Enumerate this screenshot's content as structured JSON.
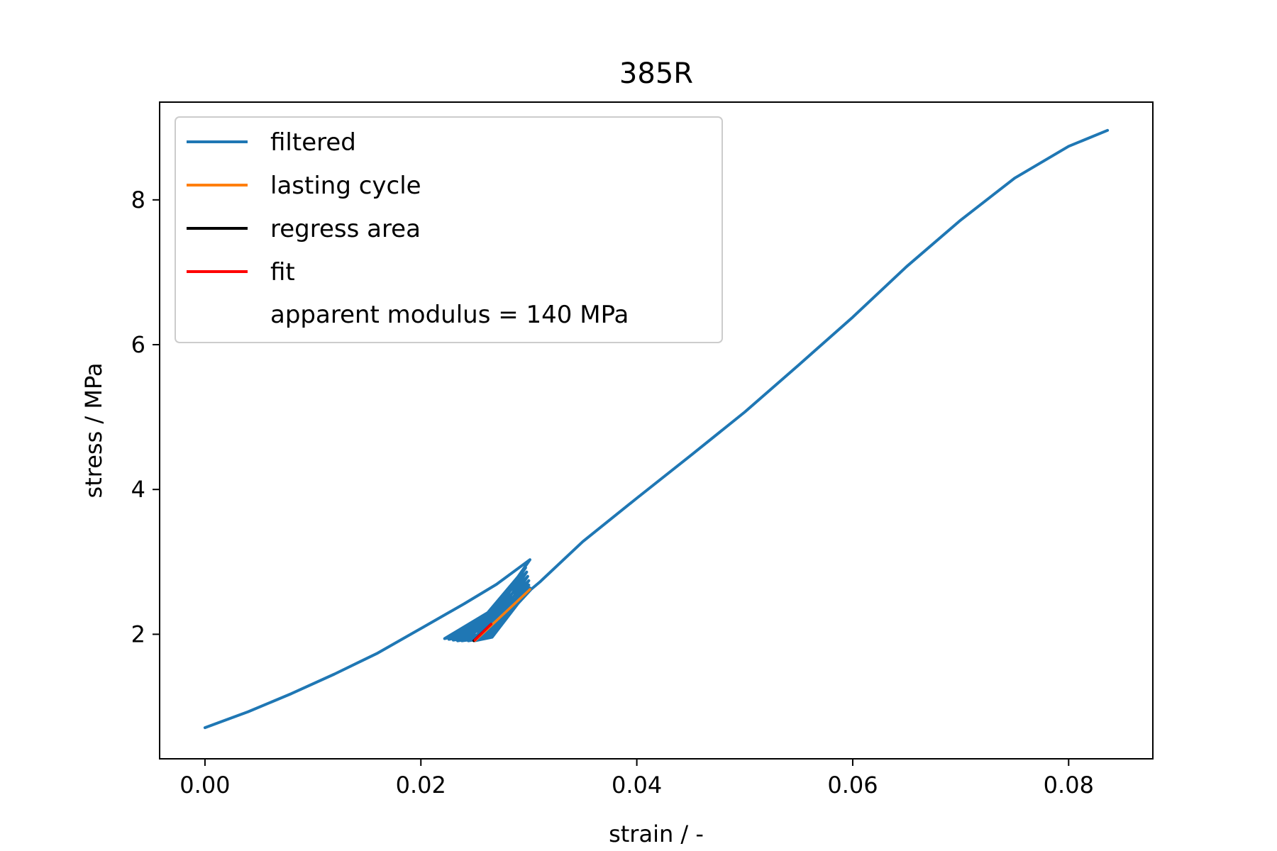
{
  "chart_data": {
    "type": "line",
    "title": "385R",
    "xlabel": "strain / -",
    "ylabel": "stress / MPa",
    "xlim": [
      -0.0042,
      0.0878
    ],
    "ylim": [
      0.28,
      9.35
    ],
    "x_ticks": [
      0.0,
      0.02,
      0.04,
      0.06,
      0.08
    ],
    "x_tick_labels": [
      "0.00",
      "0.02",
      "0.04",
      "0.06",
      "0.08"
    ],
    "y_ticks": [
      2,
      4,
      6,
      8
    ],
    "y_tick_labels": [
      "2",
      "4",
      "6",
      "8"
    ],
    "grid": false,
    "legend_position": "upper-left",
    "legend_note": "apparent modulus = 140 MPa",
    "series": [
      {
        "name": "filtered",
        "color": "#1f77b4",
        "points": [
          [
            0.0,
            0.71
          ],
          [
            0.004,
            0.93
          ],
          [
            0.008,
            1.18
          ],
          [
            0.012,
            1.45
          ],
          [
            0.016,
            1.74
          ],
          [
            0.02,
            2.08
          ],
          [
            0.024,
            2.42
          ],
          [
            0.027,
            2.69
          ],
          [
            0.0301,
            3.03
          ],
          [
            0.0255,
            2.05
          ],
          [
            0.0222,
            1.94
          ],
          [
            0.0262,
            2.3
          ],
          [
            0.0297,
            2.92
          ],
          [
            0.0256,
            2.0
          ],
          [
            0.0226,
            1.93
          ],
          [
            0.0264,
            2.28
          ],
          [
            0.0298,
            2.86
          ],
          [
            0.0258,
            1.98
          ],
          [
            0.023,
            1.92
          ],
          [
            0.0266,
            2.26
          ],
          [
            0.0299,
            2.8
          ],
          [
            0.026,
            1.97
          ],
          [
            0.0234,
            1.91
          ],
          [
            0.0268,
            2.24
          ],
          [
            0.03,
            2.74
          ],
          [
            0.0262,
            1.96
          ],
          [
            0.0238,
            1.91
          ],
          [
            0.027,
            2.22
          ],
          [
            0.03,
            2.68
          ],
          [
            0.0264,
            1.96
          ],
          [
            0.0244,
            1.91
          ],
          [
            0.0272,
            2.2
          ],
          [
            0.0301,
            2.64
          ],
          [
            0.0266,
            1.96
          ],
          [
            0.025,
            1.91
          ],
          [
            0.0276,
            2.2
          ],
          [
            0.0302,
            2.62
          ],
          [
            0.031,
            2.72
          ],
          [
            0.035,
            3.28
          ],
          [
            0.04,
            3.88
          ],
          [
            0.045,
            4.47
          ],
          [
            0.05,
            5.07
          ],
          [
            0.055,
            5.72
          ],
          [
            0.06,
            6.38
          ],
          [
            0.065,
            7.08
          ],
          [
            0.07,
            7.72
          ],
          [
            0.075,
            8.3
          ],
          [
            0.08,
            8.74
          ],
          [
            0.0836,
            8.96
          ]
        ]
      },
      {
        "name": "lasting cycle",
        "color": "#ff7f0e",
        "points": [
          [
            0.025,
            1.91
          ],
          [
            0.0301,
            2.62
          ]
        ]
      },
      {
        "name": "regress area",
        "color": "#000000",
        "points": [
          [
            0.0249,
            1.91
          ],
          [
            0.0265,
            2.14
          ]
        ]
      },
      {
        "name": "fit",
        "color": "#ff0000",
        "points": [
          [
            0.025,
            1.92
          ],
          [
            0.0265,
            2.14
          ]
        ]
      }
    ]
  }
}
